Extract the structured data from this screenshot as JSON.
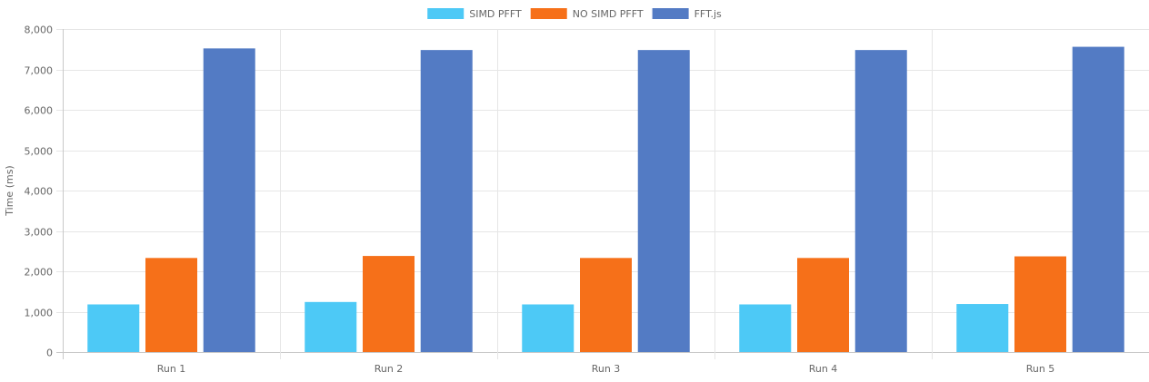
{
  "chart_data": {
    "type": "bar",
    "title": "",
    "xlabel": "",
    "ylabel": "Time (ms)",
    "categories": [
      "Run 1",
      "Run 2",
      "Run 3",
      "Run 4",
      "Run 5"
    ],
    "series": [
      {
        "name": "SIMD PFFT",
        "color": "#4dc9f6",
        "values": [
          1180,
          1240,
          1180,
          1180,
          1190
        ]
      },
      {
        "name": "NO SIMD PFFT",
        "color": "#f67019",
        "values": [
          2330,
          2380,
          2330,
          2330,
          2370
        ]
      },
      {
        "name": "FFT.js",
        "color": "#537bc4",
        "values": [
          7520,
          7480,
          7480,
          7480,
          7560
        ]
      }
    ],
    "ylim": [
      0,
      8000
    ],
    "yticks": [
      0,
      1000,
      2000,
      3000,
      4000,
      5000,
      6000,
      7000,
      8000
    ],
    "ytick_labels": [
      "0",
      "1,000",
      "2,000",
      "3,000",
      "4,000",
      "5,000",
      "6,000",
      "7,000",
      "8,000"
    ],
    "grid": true,
    "legend_position": "top-center"
  }
}
